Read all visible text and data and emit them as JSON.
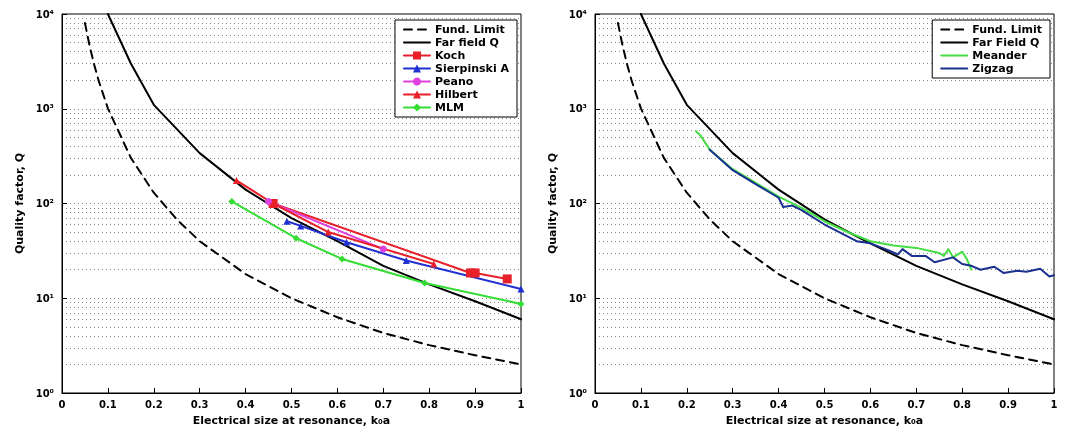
{
  "chart_data": [
    {
      "type": "line",
      "xlabel": "Electrical size at resonance, k₀a",
      "ylabel": "Quality factor, Q",
      "log": "y",
      "grid": "y",
      "legend": "top right",
      "xlim": [
        0,
        1
      ],
      "xticks": [
        0,
        0.1,
        0.2,
        0.3,
        0.4,
        0.5,
        0.6,
        0.7,
        0.8,
        0.9,
        1
      ],
      "ylim": [
        1,
        10000
      ],
      "yticks": [
        {
          "value": 1,
          "label": "10⁰"
        },
        {
          "value": 10,
          "label": "10¹"
        },
        {
          "value": 100,
          "label": "10²"
        },
        {
          "value": 1000,
          "label": "10³"
        },
        {
          "value": 10000,
          "label": "10⁴"
        }
      ],
      "series": [
        {
          "name": "Fund. Limit",
          "color": "#000000",
          "line_style": "dashed",
          "marker": "none",
          "x": [
            0.05,
            0.06,
            0.07,
            0.08,
            0.1,
            0.15,
            0.2,
            0.25,
            0.3,
            0.4,
            0.5,
            0.6,
            0.7,
            0.8,
            0.9,
            1
          ],
          "values": [
            8020,
            4646,
            2930,
            1966,
            1010,
            303,
            130,
            68,
            40,
            18,
            10,
            6.3,
            4.3,
            3.2,
            2.5,
            2
          ]
        },
        {
          "name": "Far field Q",
          "color": "#000000",
          "line_style": "solid",
          "marker": "none",
          "x": [
            0.1,
            0.15,
            0.2,
            0.3,
            0.4,
            0.5,
            0.6,
            0.7,
            0.8,
            0.9,
            1
          ],
          "values": [
            10000,
            3000,
            1100,
            340,
            140,
            70,
            40,
            22,
            14,
            9.3,
            6
          ]
        },
        {
          "name": "Koch",
          "color": "#e8202a",
          "line_style": "solid",
          "marker": "square",
          "x": [
            0.46,
            0.89,
            0.9,
            0.97
          ],
          "values": [
            100,
            18.5,
            18.5,
            16
          ]
        },
        {
          "name": "Sierpinski A",
          "color": "#1f2fd0",
          "line_style": "solid",
          "marker": "triangle",
          "x": [
            0.49,
            0.52,
            0.62,
            0.75,
            1
          ],
          "values": [
            65,
            58,
            39,
            25,
            12.5
          ]
        },
        {
          "name": "Peano",
          "color": "#e040e0",
          "line_style": "solid",
          "marker": "circle",
          "x": [
            0.45,
            0.7
          ],
          "values": [
            105,
            33
          ]
        },
        {
          "name": "Hilbert",
          "color": "#e8202a",
          "line_style": "solid",
          "marker": "triangle",
          "x": [
            0.38,
            0.46,
            0.58,
            0.81
          ],
          "values": [
            175,
            100,
            50,
            23
          ]
        },
        {
          "name": "MLM",
          "color": "#33dd33",
          "line_style": "solid",
          "marker": "diamond",
          "x": [
            0.37,
            0.51,
            0.61,
            0.79,
            1
          ],
          "values": [
            105,
            43,
            26,
            14.5,
            8.7
          ]
        }
      ]
    },
    {
      "type": "line",
      "xlabel": "Electrical size at resonance, k₀a",
      "ylabel": "Quality factor, Q",
      "log": "y",
      "grid": "y",
      "legend": "top right",
      "xlim": [
        0,
        1
      ],
      "xticks": [
        0,
        0.1,
        0.2,
        0.3,
        0.4,
        0.5,
        0.6,
        0.7,
        0.8,
        0.9,
        1
      ],
      "ylim": [
        1,
        10000
      ],
      "yticks": [
        {
          "value": 1,
          "label": "10⁰"
        },
        {
          "value": 10,
          "label": "10¹"
        },
        {
          "value": 100,
          "label": "10²"
        },
        {
          "value": 1000,
          "label": "10³"
        },
        {
          "value": 10000,
          "label": "10⁴"
        }
      ],
      "series": [
        {
          "name": "Fund. Limit",
          "color": "#000000",
          "line_style": "dashed",
          "marker": "none",
          "x": [
            0.05,
            0.06,
            0.07,
            0.08,
            0.1,
            0.15,
            0.2,
            0.25,
            0.3,
            0.4,
            0.5,
            0.6,
            0.7,
            0.8,
            0.9,
            1
          ],
          "values": [
            8020,
            4646,
            2930,
            1966,
            1010,
            303,
            130,
            68,
            40,
            18,
            10,
            6.3,
            4.3,
            3.2,
            2.5,
            2
          ]
        },
        {
          "name": "Far Field Q",
          "color": "#000000",
          "line_style": "solid",
          "marker": "none",
          "x": [
            0.1,
            0.15,
            0.2,
            0.3,
            0.4,
            0.5,
            0.57,
            0.6,
            0.7,
            0.8,
            0.9,
            1
          ],
          "values": [
            10000,
            3000,
            1100,
            340,
            140,
            68,
            45,
            38,
            22,
            14,
            9.3,
            6
          ]
        },
        {
          "name": "Meander",
          "color": "#44dd44",
          "line_style": "solid",
          "marker": "none",
          "x": [
            0.22,
            0.23,
            0.25,
            0.3,
            0.35,
            0.4,
            0.45,
            0.5,
            0.55,
            0.6,
            0.65,
            0.7,
            0.75,
            0.76,
            0.77,
            0.78,
            0.8,
            0.81,
            0.82
          ],
          "values": [
            580,
            520,
            370,
            230,
            165,
            118,
            90,
            65,
            50,
            40,
            36,
            34,
            30,
            28,
            33,
            27,
            31,
            26,
            20
          ]
        },
        {
          "name": "Zigzag",
          "color": "#1a3090",
          "line_style": "solid",
          "marker": "none",
          "x": [
            0.25,
            0.3,
            0.35,
            0.4,
            0.41,
            0.43,
            0.45,
            0.5,
            0.55,
            0.57,
            0.6,
            0.64,
            0.66,
            0.67,
            0.69,
            0.72,
            0.74,
            0.78,
            0.8,
            0.82,
            0.84,
            0.87,
            0.89,
            0.92,
            0.94,
            0.97,
            0.99,
            1
          ],
          "values": [
            370,
            225,
            160,
            115,
            92,
            95,
            85,
            60,
            45,
            40,
            38,
            32,
            29,
            33,
            28,
            28,
            24,
            27,
            23,
            22,
            20,
            21.5,
            18.5,
            19.5,
            19,
            20.5,
            17,
            17.5
          ]
        }
      ]
    }
  ]
}
